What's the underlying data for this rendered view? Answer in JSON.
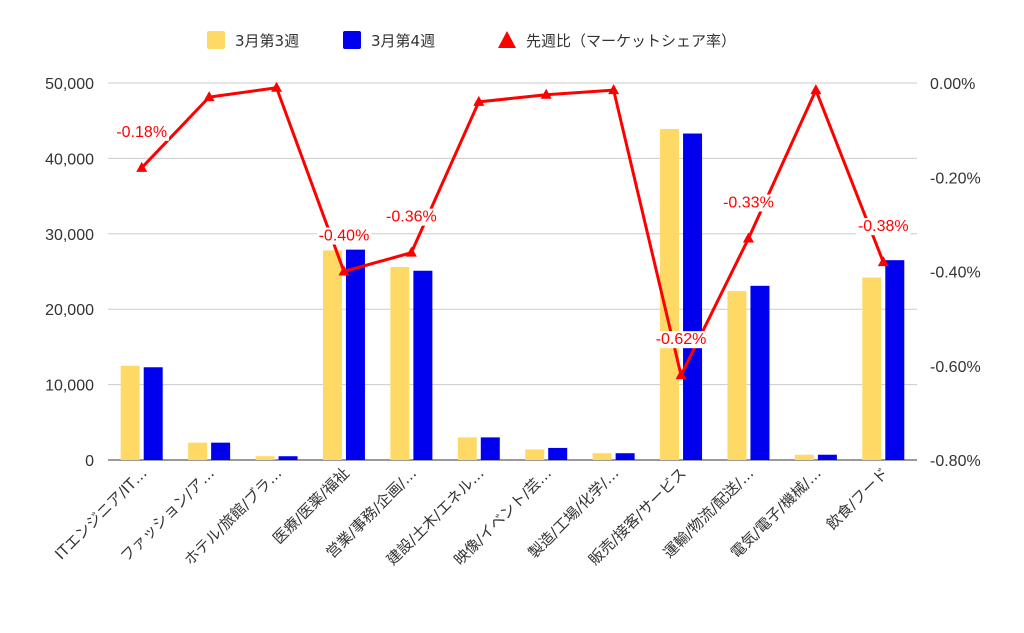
{
  "chart_data": {
    "type": "bar",
    "categories": [
      "ITエンジニア/IT…",
      "ファッション/ア…",
      "ホテル/旅館/ブラ…",
      "医療/医薬/福祉",
      "営業/事務/企画/…",
      "建設/土木/エネル…",
      "映像/イベント/芸…",
      "製造/工場/化学/…",
      "販売/接客/サービス",
      "運輸/物流/配送/…",
      "電気/電子/機械/…",
      "飲食/フード"
    ],
    "series": [
      {
        "name": "3月第3週",
        "type": "bar",
        "axis": "left",
        "color": "#FFD966",
        "values": [
          12500,
          2300,
          500,
          27800,
          25600,
          3000,
          1400,
          900,
          43900,
          22400,
          700,
          24200
        ]
      },
      {
        "name": "3月第4週",
        "type": "bar",
        "axis": "left",
        "color": "#0000EE",
        "values": [
          12300,
          2300,
          500,
          27900,
          25100,
          3000,
          1600,
          900,
          43300,
          23100,
          700,
          26500
        ]
      },
      {
        "name": "先週比（マーケットシェア率）",
        "type": "line",
        "axis": "right",
        "color": "#FF0000",
        "marker": "triangle",
        "values": [
          -0.18,
          -0.03,
          -0.01,
          -0.4,
          -0.36,
          -0.04,
          -0.025,
          -0.015,
          -0.62,
          -0.33,
          -0.015,
          -0.38
        ]
      }
    ],
    "data_labels": [
      {
        "index": 0,
        "text": "-0.18%"
      },
      {
        "index": 3,
        "text": "-0.40%"
      },
      {
        "index": 4,
        "text": "-0.36%"
      },
      {
        "index": 8,
        "text": "-0.62%"
      },
      {
        "index": 9,
        "text": "-0.33%"
      },
      {
        "index": 11,
        "text": "-0.38%"
      }
    ],
    "y_left": {
      "ylim": [
        0,
        50000
      ],
      "ticks": [
        0,
        10000,
        20000,
        30000,
        40000,
        50000
      ],
      "tick_labels": [
        "0",
        "10,000",
        "20,000",
        "30,000",
        "40,000",
        "50,000"
      ]
    },
    "y_right": {
      "ylim": [
        -0.8,
        0
      ],
      "ticks": [
        0,
        -0.2,
        -0.4,
        -0.6,
        -0.8
      ],
      "tick_labels": [
        "0.00%",
        "-0.20%",
        "-0.40%",
        "-0.60%",
        "-0.80%"
      ]
    },
    "legend_position": "top",
    "grid": true,
    "title": "",
    "xlabel": "",
    "ylabel": ""
  }
}
